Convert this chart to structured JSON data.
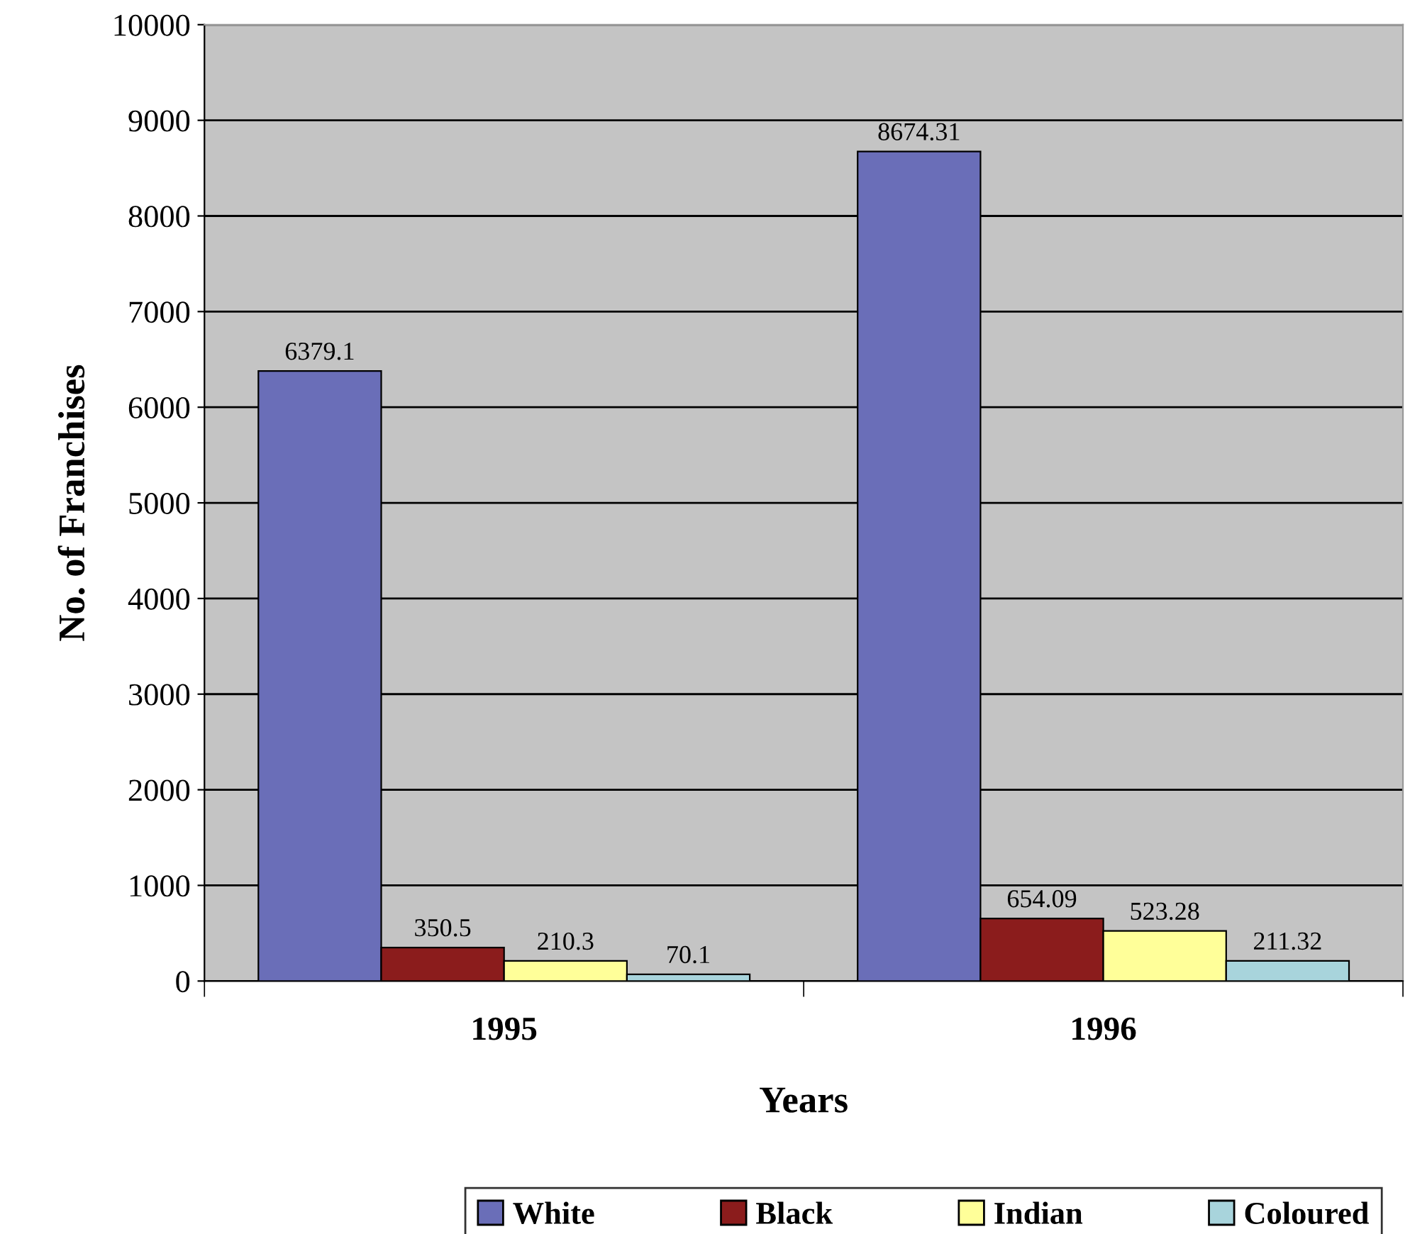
{
  "chart_data": {
    "type": "bar",
    "xlabel": "Years",
    "ylabel": "No. of Franchises",
    "categories": [
      "1995",
      "1996"
    ],
    "series": [
      {
        "name": "White",
        "color": "#6a6eb8",
        "values": [
          6379.1,
          8674.31
        ]
      },
      {
        "name": "Black",
        "color": "#8b1c1c",
        "values": [
          350.5,
          654.09
        ]
      },
      {
        "name": "Indian",
        "color": "#ffff99",
        "values": [
          210.3,
          523.28
        ]
      },
      {
        "name": "Coloured",
        "color": "#a8d4dc",
        "values": [
          70.1,
          211.32
        ]
      }
    ],
    "ylim": [
      0,
      10000
    ],
    "yticks": [
      0,
      1000,
      2000,
      3000,
      4000,
      5000,
      6000,
      7000,
      8000,
      9000,
      10000
    ],
    "grid": "y",
    "legend": "bottom",
    "data_labels": true
  }
}
